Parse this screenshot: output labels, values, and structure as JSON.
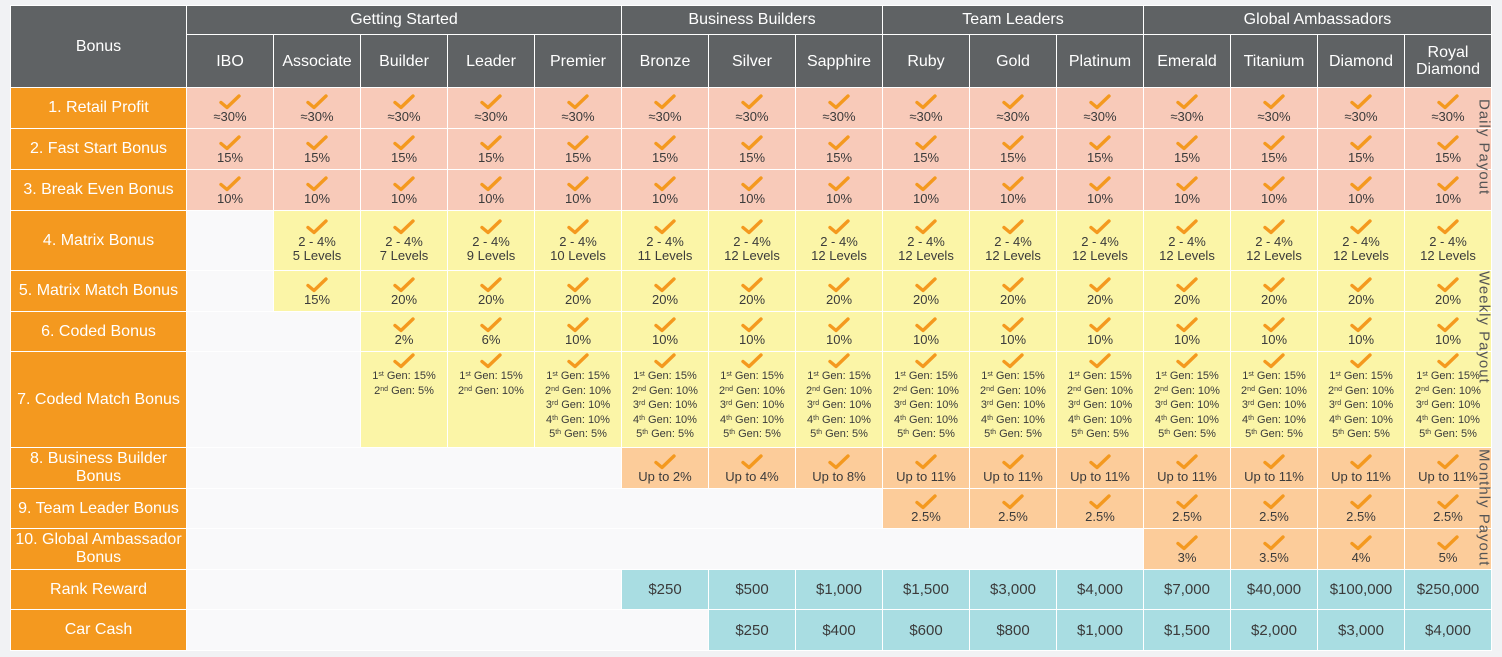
{
  "table": {
    "corner_label": "Bonus",
    "groups": [
      {
        "label": "Getting Started",
        "span": 5
      },
      {
        "label": "Business Builders",
        "span": 3
      },
      {
        "label": "Team Leaders",
        "span": 3
      },
      {
        "label": "Global Ambassadors",
        "span": 4
      }
    ],
    "ranks": [
      "IBO",
      "Associate",
      "Builder",
      "Leader",
      "Premier",
      "Bronze",
      "Silver",
      "Sapphire",
      "Ruby",
      "Gold",
      "Platinum",
      "Emerald",
      "Titanium",
      "Diamond",
      "Royal Diamond"
    ],
    "rows": [
      {
        "label": "1. Retail Profit",
        "zone": "daily",
        "start": 0,
        "values": [
          "≈30%",
          "≈30%",
          "≈30%",
          "≈30%",
          "≈30%",
          "≈30%",
          "≈30%",
          "≈30%",
          "≈30%",
          "≈30%",
          "≈30%",
          "≈30%",
          "≈30%",
          "≈30%",
          "≈30%"
        ]
      },
      {
        "label": "2. Fast Start Bonus",
        "zone": "daily",
        "start": 0,
        "values": [
          "15%",
          "15%",
          "15%",
          "15%",
          "15%",
          "15%",
          "15%",
          "15%",
          "15%",
          "15%",
          "15%",
          "15%",
          "15%",
          "15%",
          "15%"
        ]
      },
      {
        "label": "3. Break Even Bonus",
        "zone": "daily",
        "start": 0,
        "values": [
          "10%",
          "10%",
          "10%",
          "10%",
          "10%",
          "10%",
          "10%",
          "10%",
          "10%",
          "10%",
          "10%",
          "10%",
          "10%",
          "10%",
          "10%"
        ]
      },
      {
        "label": "4. Matrix Bonus",
        "zone": "weekly",
        "start": 1,
        "values": [
          [
            "2 - 4%",
            "5 Levels"
          ],
          [
            "2 - 4%",
            "7 Levels"
          ],
          [
            "2 - 4%",
            "9 Levels"
          ],
          [
            "2 - 4%",
            "10 Levels"
          ],
          [
            "2 - 4%",
            "11 Levels"
          ],
          [
            "2 - 4%",
            "12 Levels"
          ],
          [
            "2 - 4%",
            "12 Levels"
          ],
          [
            "2 - 4%",
            "12 Levels"
          ],
          [
            "2 - 4%",
            "12 Levels"
          ],
          [
            "2 - 4%",
            "12 Levels"
          ],
          [
            "2 - 4%",
            "12 Levels"
          ],
          [
            "2 - 4%",
            "12 Levels"
          ],
          [
            "2 - 4%",
            "12 Levels"
          ],
          [
            "2 - 4%",
            "12 Levels"
          ]
        ]
      },
      {
        "label": "5. Matrix Match Bonus",
        "zone": "weekly",
        "start": 1,
        "values": [
          "15%",
          "20%",
          "20%",
          "20%",
          "20%",
          "20%",
          "20%",
          "20%",
          "20%",
          "20%",
          "20%",
          "20%",
          "20%",
          "20%"
        ]
      },
      {
        "label": "6. Coded Bonus",
        "zone": "weekly",
        "start": 2,
        "values": [
          "2%",
          "6%",
          "10%",
          "10%",
          "10%",
          "10%",
          "10%",
          "10%",
          "10%",
          "10%",
          "10%",
          "10%",
          "10%"
        ]
      },
      {
        "label": "7. Coded Match Bonus",
        "zone": "weekly",
        "start": 2,
        "type": "generations",
        "values": [
          [
            "1st Gen: 15%",
            "2nd Gen: 5%"
          ],
          [
            "1st Gen: 15%",
            "2nd Gen: 10%"
          ],
          [
            "1st Gen: 15%",
            "2nd Gen: 10%",
            "3rd Gen: 10%",
            "4th Gen: 10%",
            "5th Gen: 5%"
          ],
          [
            "1st Gen: 15%",
            "2nd Gen: 10%",
            "3rd Gen: 10%",
            "4th Gen: 10%",
            "5th Gen: 5%"
          ],
          [
            "1st Gen: 15%",
            "2nd Gen: 10%",
            "3rd Gen: 10%",
            "4th Gen: 10%",
            "5th Gen: 5%"
          ],
          [
            "1st Gen: 15%",
            "2nd Gen: 10%",
            "3rd Gen: 10%",
            "4th Gen: 10%",
            "5th Gen: 5%"
          ],
          [
            "1st Gen: 15%",
            "2nd Gen: 10%",
            "3rd Gen: 10%",
            "4th Gen: 10%",
            "5th Gen: 5%"
          ],
          [
            "1st Gen: 15%",
            "2nd Gen: 10%",
            "3rd Gen: 10%",
            "4th Gen: 10%",
            "5th Gen: 5%"
          ],
          [
            "1st Gen: 15%",
            "2nd Gen: 10%",
            "3rd Gen: 10%",
            "4th Gen: 10%",
            "5th Gen: 5%"
          ],
          [
            "1st Gen: 15%",
            "2nd Gen: 10%",
            "3rd Gen: 10%",
            "4th Gen: 10%",
            "5th Gen: 5%"
          ],
          [
            "1st Gen: 15%",
            "2nd Gen: 10%",
            "3rd Gen: 10%",
            "4th Gen: 10%",
            "5th Gen: 5%"
          ],
          [
            "1st Gen: 15%",
            "2nd Gen: 10%",
            "3rd Gen: 10%",
            "4th Gen: 10%",
            "5th Gen: 5%"
          ],
          [
            "1st Gen: 15%",
            "2nd Gen: 10%",
            "3rd Gen: 10%",
            "4th Gen: 10%",
            "5th Gen: 5%"
          ]
        ]
      },
      {
        "label": "8. Business Builder Bonus",
        "zone": "monthly",
        "start": 5,
        "values": [
          "Up to 2%",
          "Up to 4%",
          "Up to 8%",
          "Up to 11%",
          "Up to 11%",
          "Up to 11%",
          "Up to 11%",
          "Up to 11%",
          "Up to 11%",
          "Up to 11%"
        ]
      },
      {
        "label": "9. Team Leader Bonus",
        "zone": "monthly",
        "start": 8,
        "values": [
          "2.5%",
          "2.5%",
          "2.5%",
          "2.5%",
          "2.5%",
          "2.5%",
          "2.5%"
        ]
      },
      {
        "label": "10. Global Ambassador Bonus",
        "zone": "monthly",
        "start": 11,
        "values": [
          "3%",
          "3.5%",
          "4%",
          "5%"
        ]
      },
      {
        "label": "Rank Reward",
        "zone": "money",
        "start": 5,
        "values": [
          "$250",
          "$500",
          "$1,000",
          "$1,500",
          "$3,000",
          "$4,000",
          "$7,000",
          "$40,000",
          "$100,000",
          "$250,000"
        ]
      },
      {
        "label": "Car Cash",
        "zone": "money",
        "start": 6,
        "values": [
          "$250",
          "$400",
          "$600",
          "$800",
          "$1,000",
          "$1,500",
          "$2,000",
          "$3,000",
          "$4,000"
        ]
      }
    ]
  },
  "payout_periods": [
    "Daily Payout",
    "Weekly Payout",
    "Monthly Payout"
  ],
  "colors": {
    "header": "#5f6264",
    "bonus_label": "#f4991f",
    "daily": "#f8cab9",
    "weekly": "#fbf5a7",
    "monthly": "#fccc9a",
    "rewards": "#a9dde2",
    "check": "#f4991f"
  },
  "icons": {
    "check": "checkmark-icon"
  }
}
